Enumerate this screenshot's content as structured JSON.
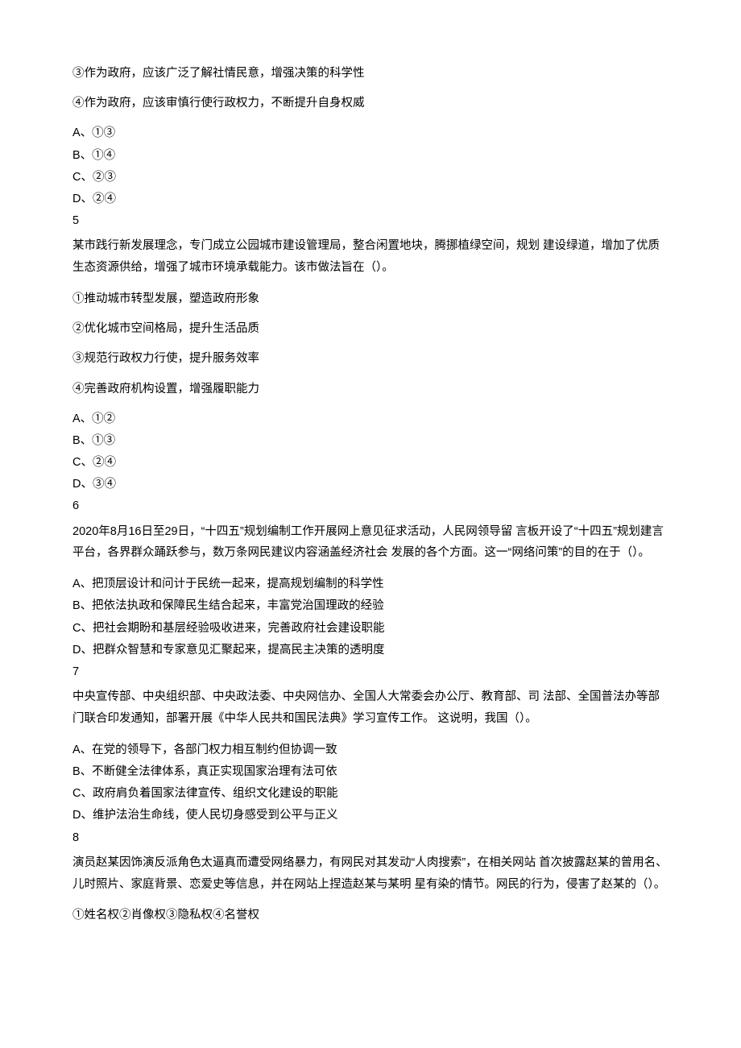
{
  "q4_tail": {
    "statements": [
      "③作为政府，应该广泛了解社情民意，增强决策的科学性",
      "④作为政府，应该审慎行使行政权力，不断提升自身权威"
    ],
    "options": [
      "A、①③",
      "B、①④",
      "C、②③",
      "D、②④"
    ]
  },
  "q5": {
    "num": "5",
    "stem": "某市践行新发展理念，专门成立公园城市建设管理局，整合闲置地块，腾挪植绿空间，规划 建设绿道，增加了优质生态资源供给，增强了城市环境承载能力。该市做法旨在（）。",
    "statements": [
      "①推动城市转型发展，塑造政府形象",
      "②优化城市空间格局，提升生活品质",
      "③规范行政权力行使，提升服务效率",
      "④完善政府机构设置，增强履职能力"
    ],
    "options": [
      "A、①②",
      "B、①③",
      "C、②④",
      "D、③④"
    ]
  },
  "q6": {
    "num": "6",
    "stem": "2020年8月16日至29日，“十四五”规划编制工作开展网上意见征求活动，人民网领导留 言板开设了“十四五”规划建言平台，各界群众踊跃参与，数万条网民建议内容涵盖经济社会 发展的各个方面。这一“网络问策”的目的在于（）。",
    "options": [
      "A、把顶层设计和问计于民统一起来，提高规划编制的科学性",
      "B、把依法执政和保障民生结合起来，丰富党治国理政的经验",
      "C、把社会期盼和基层经验吸收进来，完善政府社会建设职能",
      "D、把群众智慧和专家意见汇聚起来，提高民主决策的透明度"
    ]
  },
  "q7": {
    "num": "7",
    "stem": "中央宣传部、中央组织部、中央政法委、中央网信办、全国人大常委会办公厅、教育部、司 法部、全国普法办等部门联合印发通知，部署开展《中华人民共和国民法典》学习宣传工作。 这说明，我国（）。",
    "options": [
      "A、在党的领导下，各部门权力相互制约但协调一致",
      "B、不断健全法律体系，真正实现国家治理有法可依",
      "C、政府肩负着国家法律宣传、组织文化建设的职能",
      "D、维护法治生命线，使人民切身感受到公平与正义"
    ]
  },
  "q8": {
    "num": "8",
    "stem": "演员赵某因饰演反派角色太逼真而遭受网络暴力，有网民对其发动“人肉搜索”，在相关网站 首次披露赵某的曾用名、儿时照片、家庭背景、恋爱史等信息，并在网站上捏造赵某与某明 星有染的情节。网民的行为，侵害了赵某的（）。",
    "statements": [
      "①姓名权②肖像权③隐私权④名誉权"
    ]
  }
}
